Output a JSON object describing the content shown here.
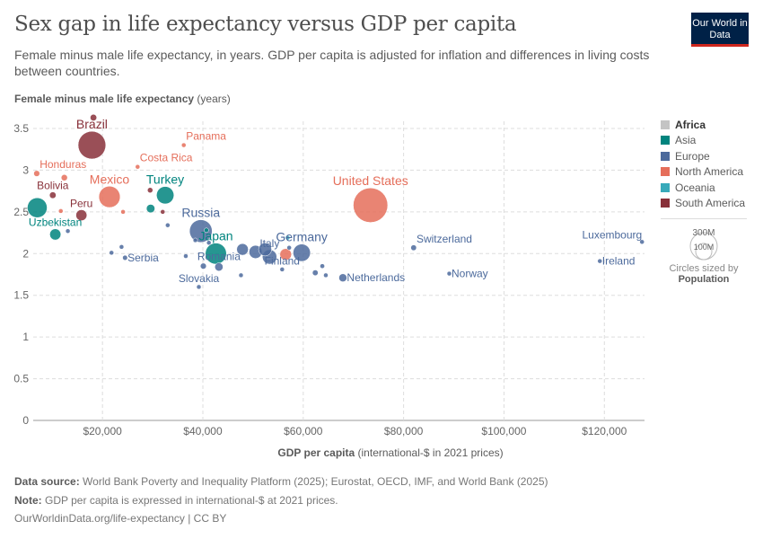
{
  "header": {
    "title": "Sex gap in life expectancy versus GDP per capita",
    "subtitle": "Female minus male life expectancy, in years. GDP per capita is adjusted for inflation and differences in living costs between countries.",
    "logo": "Our World in Data"
  },
  "colors": {
    "Africa": "#c4c4c4",
    "Asia": "#00847e",
    "Europe": "#4c6a9c",
    "North America": "#e56e5a",
    "Oceania": "#38aaba",
    "South America": "#883039"
  },
  "legend": {
    "items": [
      "Africa",
      "Asia",
      "Europe",
      "North America",
      "Oceania",
      "South America"
    ],
    "size_300": "300M",
    "size_100": "100M",
    "size_caption": "Circles sized by",
    "size_var": "Population"
  },
  "footer": {
    "source_label": "Data source:",
    "source": "World Bank Poverty and Inequality Platform (2025); Eurostat, OECD, IMF, and World Bank (2025)",
    "note_label": "Note:",
    "note": "GDP per capita is expressed in international-$ at 2021 prices.",
    "url": "OurWorldinData.org/life-expectancy | CC BY"
  },
  "chart_data": {
    "type": "scatter",
    "ylabel_bold": "Female minus male life expectancy",
    "ylabel_unit": " (years)",
    "xlabel_bold": "GDP per capita",
    "xlabel_unit": " (international-$ in 2021 prices)",
    "xlim": [
      6200,
      128000
    ],
    "ylim": [
      0,
      3.5
    ],
    "xticks": [
      20000,
      40000,
      60000,
      80000,
      100000,
      120000
    ],
    "xtick_labels": [
      "$20,000",
      "$40,000",
      "$60,000",
      "$80,000",
      "$100,000",
      "$120,000"
    ],
    "yticks": [
      0,
      0.5,
      1,
      1.5,
      2,
      2.5,
      3,
      3.5
    ],
    "ytick_labels": [
      "0",
      "0.5",
      "1",
      "1.5",
      "2",
      "2.5",
      "3",
      "3.5"
    ],
    "grid": true,
    "legend_position": "right",
    "size_variable": "Population",
    "points": [
      {
        "label": "Brazil",
        "region": "South America",
        "x": 17900,
        "y": 3.3,
        "pop": 215
      },
      {
        "label": "",
        "region": "South America",
        "x": 18200,
        "y": 3.63,
        "pop": 12
      },
      {
        "label": "Honduras",
        "region": "North America",
        "x": 6900,
        "y": 2.96,
        "pop": 10
      },
      {
        "label": "Panama",
        "region": "North America",
        "x": 36200,
        "y": 3.3,
        "pop": 4
      },
      {
        "label": "Costa Rica",
        "region": "North America",
        "x": 27000,
        "y": 3.04,
        "pop": 5
      },
      {
        "label": "",
        "region": "North America",
        "x": 12400,
        "y": 2.91,
        "pop": 11
      },
      {
        "label": "Bolivia",
        "region": "South America",
        "x": 10100,
        "y": 2.7,
        "pop": 12
      },
      {
        "label": "Mexico",
        "region": "North America",
        "x": 21400,
        "y": 2.68,
        "pop": 128
      },
      {
        "label": "",
        "region": "South America",
        "x": 29500,
        "y": 2.76,
        "pop": 8
      },
      {
        "label": "Turkey",
        "region": "Asia",
        "x": 32500,
        "y": 2.7,
        "pop": 85
      },
      {
        "label": "",
        "region": "Asia",
        "x": 7000,
        "y": 2.55,
        "pop": 110
      },
      {
        "label": "",
        "region": "North America",
        "x": 11700,
        "y": 2.51,
        "pop": 2
      },
      {
        "label": "Peru",
        "region": "South America",
        "x": 15800,
        "y": 2.46,
        "pop": 34
      },
      {
        "label": "",
        "region": "Asia",
        "x": 29600,
        "y": 2.54,
        "pop": 20
      },
      {
        "label": "",
        "region": "South America",
        "x": 32000,
        "y": 2.5,
        "pop": 1
      },
      {
        "label": "",
        "region": "North America",
        "x": 24100,
        "y": 2.5,
        "pop": 5
      },
      {
        "label": "Uzbekistan",
        "region": "Asia",
        "x": 10600,
        "y": 2.23,
        "pop": 35
      },
      {
        "label": "",
        "region": "Europe",
        "x": 13100,
        "y": 2.27,
        "pop": 1
      },
      {
        "label": "",
        "region": "Europe",
        "x": 33000,
        "y": 2.34,
        "pop": 2
      },
      {
        "label": "Russia",
        "region": "Europe",
        "x": 39600,
        "y": 2.27,
        "pop": 144
      },
      {
        "label": "",
        "region": "Europe",
        "x": 23800,
        "y": 2.08,
        "pop": 1
      },
      {
        "label": "",
        "region": "Europe",
        "x": 21800,
        "y": 2.01,
        "pop": 1
      },
      {
        "label": "Serbia",
        "region": "Europe",
        "x": 24500,
        "y": 1.95,
        "pop": 7
      },
      {
        "label": "",
        "region": "Europe",
        "x": 36600,
        "y": 1.97,
        "pop": 4
      },
      {
        "label": "",
        "region": "Asia",
        "x": 40700,
        "y": 2.28,
        "pop": 3
      },
      {
        "label": "",
        "region": "Europe",
        "x": 41200,
        "y": 2.13,
        "pop": 3
      },
      {
        "label": "",
        "region": "Europe",
        "x": 38500,
        "y": 2.16,
        "pop": 1
      },
      {
        "label": "Japan",
        "region": "Asia",
        "x": 42600,
        "y": 2.0,
        "pop": 125
      },
      {
        "label": "",
        "region": "Europe",
        "x": 40100,
        "y": 1.85,
        "pop": 10
      },
      {
        "label": "Romania",
        "region": "Europe",
        "x": 43200,
        "y": 1.84,
        "pop": 19
      },
      {
        "label": "Slovakia",
        "region": "Europe",
        "x": 39200,
        "y": 1.6,
        "pop": 5
      },
      {
        "label": "",
        "region": "Europe",
        "x": 47600,
        "y": 1.74,
        "pop": 2
      },
      {
        "label": "",
        "region": "Europe",
        "x": 47900,
        "y": 2.05,
        "pop": 38
      },
      {
        "label": "",
        "region": "Europe",
        "x": 50500,
        "y": 2.02,
        "pop": 48
      },
      {
        "label": "",
        "region": "Europe",
        "x": 52400,
        "y": 2.05,
        "pop": 48
      },
      {
        "label": "Italy",
        "region": "Europe",
        "x": 53300,
        "y": 1.96,
        "pop": 59
      },
      {
        "label": "",
        "region": "Oceania",
        "x": 56900,
        "y": 2.19,
        "pop": 5
      },
      {
        "label": "",
        "region": "Europe",
        "x": 57200,
        "y": 2.07,
        "pop": 1
      },
      {
        "label": "",
        "region": "North America",
        "x": 56500,
        "y": 1.99,
        "pop": 38
      },
      {
        "label": "Finland",
        "region": "Europe",
        "x": 55800,
        "y": 1.81,
        "pop": 5
      },
      {
        "label": "Germany",
        "region": "Europe",
        "x": 59700,
        "y": 2.01,
        "pop": 84
      },
      {
        "label": "",
        "region": "Europe",
        "x": 63800,
        "y": 1.85,
        "pop": 6
      },
      {
        "label": "",
        "region": "Europe",
        "x": 62400,
        "y": 1.77,
        "pop": 9
      },
      {
        "label": "",
        "region": "Europe",
        "x": 64500,
        "y": 1.74,
        "pop": 1
      },
      {
        "label": "Netherlands",
        "region": "Europe",
        "x": 67900,
        "y": 1.71,
        "pop": 18
      },
      {
        "label": "United States",
        "region": "North America",
        "x": 73400,
        "y": 2.58,
        "pop": 335
      },
      {
        "label": "Switzerland",
        "region": "Europe",
        "x": 82000,
        "y": 2.07,
        "pop": 9
      },
      {
        "label": "Norway",
        "region": "Europe",
        "x": 89100,
        "y": 1.76,
        "pop": 5
      },
      {
        "label": "Ireland",
        "region": "Europe",
        "x": 119100,
        "y": 1.91,
        "pop": 5
      },
      {
        "label": "Luxembourg",
        "region": "Europe",
        "x": 127500,
        "y": 2.14,
        "pop": 1
      }
    ]
  }
}
